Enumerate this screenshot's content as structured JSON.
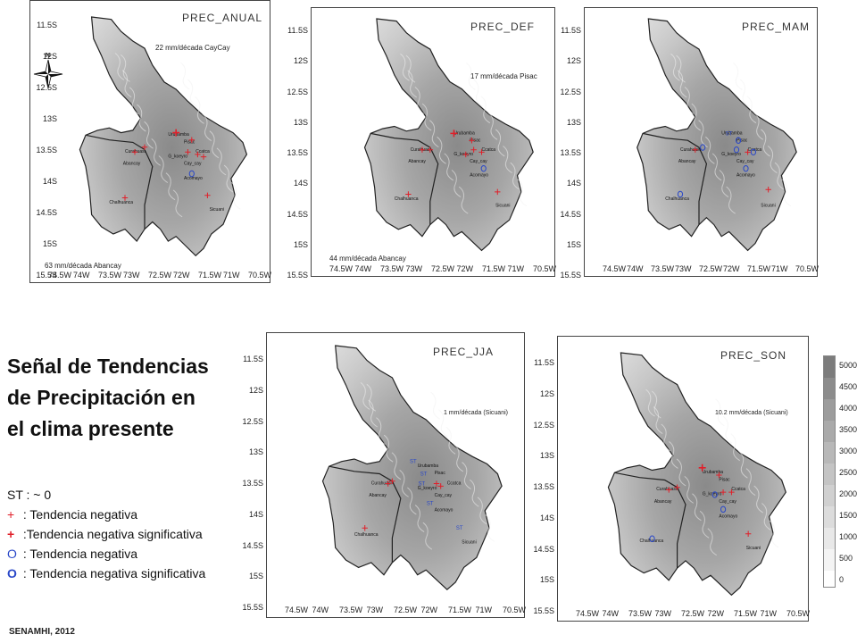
{
  "panels": [
    {
      "id": "anual",
      "title": "PREC_ANUAL",
      "notes": [
        "22 mm/década CayCay",
        "63 mm/década Abancay"
      ]
    },
    {
      "id": "def",
      "title": "PREC_DEF",
      "notes": [
        "17 mm/década Pisac",
        "44 mm/década Abancay"
      ]
    },
    {
      "id": "mam",
      "title": "PREC_MAM",
      "notes": []
    },
    {
      "id": "jja",
      "title": "PREC_JJA",
      "notes": [
        "1 mm/década (Sicuani)"
      ]
    },
    {
      "id": "son",
      "title": "PREC_SON",
      "notes": [
        "10.2 mm/década (Sicuani)"
      ]
    }
  ],
  "y_ticks": [
    "11.5S",
    "12S",
    "12.5S",
    "13S",
    "13.5S",
    "14S",
    "14.5S",
    "15S",
    "15.5S"
  ],
  "x_ticks": [
    "74.5W",
    "74W",
    "73.5W",
    "73W",
    "72.5W",
    "72W",
    "71.5W",
    "71W",
    "70.5W"
  ],
  "stations": [
    "Urubamba",
    "Pisac",
    "Curahuasi",
    "Abancay",
    "G_koeyro",
    "Ccatca",
    "Cay_cay",
    "Acomayo",
    "Chalhuanca",
    "Sicuani"
  ],
  "legend": {
    "title_lines": [
      "Señal de Tendencias",
      "de Precipitación en",
      "el clima presente"
    ],
    "rows": [
      {
        "symbol": "ST :",
        "text": " ~ 0"
      },
      {
        "symbol": "+",
        "text": " : Tendencia negativa"
      },
      {
        "symbol": "+",
        "text": " :Tendencia negativa significativa"
      },
      {
        "symbol": "O",
        "text": " : Tendencia negativa"
      },
      {
        "symbol": "O",
        "text": " : Tendencia negativa significativa"
      }
    ]
  },
  "credit": "SENAMHI, 2012",
  "colorbar_labels": [
    "5000",
    "4500",
    "4000",
    "3500",
    "3000",
    "2500",
    "2000",
    "1500",
    "1000",
    "500",
    "0"
  ],
  "colors": {
    "plus": "#e0202a",
    "circle": "#2a48c8",
    "st": "#2a48c8",
    "land_dark": "#8a8a8a",
    "land_light": "#d8d8d8"
  }
}
